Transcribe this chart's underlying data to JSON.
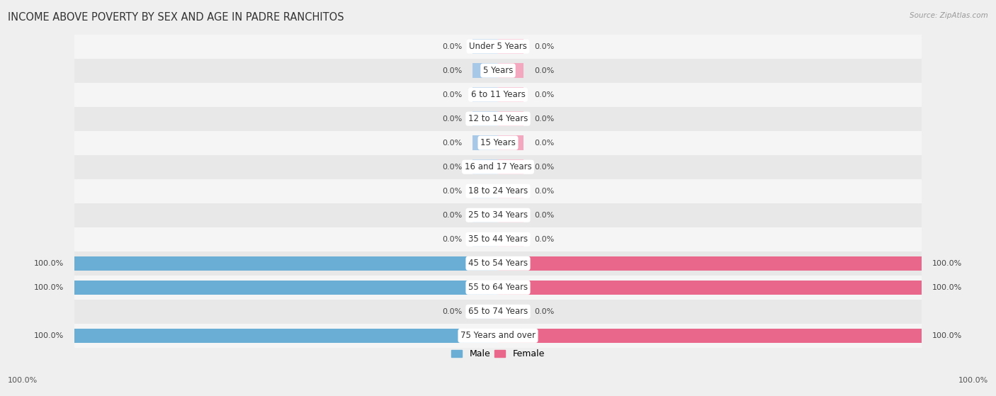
{
  "title": "INCOME ABOVE POVERTY BY SEX AND AGE IN PADRE RANCHITOS",
  "source": "Source: ZipAtlas.com",
  "categories": [
    "Under 5 Years",
    "5 Years",
    "6 to 11 Years",
    "12 to 14 Years",
    "15 Years",
    "16 and 17 Years",
    "18 to 24 Years",
    "25 to 34 Years",
    "35 to 44 Years",
    "45 to 54 Years",
    "55 to 64 Years",
    "65 to 74 Years",
    "75 Years and over"
  ],
  "male_values": [
    0.0,
    0.0,
    0.0,
    0.0,
    0.0,
    0.0,
    0.0,
    0.0,
    0.0,
    100.0,
    100.0,
    0.0,
    100.0
  ],
  "female_values": [
    0.0,
    0.0,
    0.0,
    0.0,
    0.0,
    0.0,
    0.0,
    0.0,
    0.0,
    100.0,
    100.0,
    0.0,
    100.0
  ],
  "male_color_zero": "#a8c8e8",
  "female_color_zero": "#f4a8c0",
  "male_color_full": "#6aaed6",
  "female_color_full": "#e8678a",
  "bg_color": "#efefef",
  "row_bg_even": "#f5f5f5",
  "row_bg_odd": "#e8e8e8",
  "title_fontsize": 10.5,
  "label_fontsize": 8.5,
  "value_fontsize": 8,
  "legend_fontsize": 9,
  "max_val": 100.0,
  "zero_stub": 6.0
}
